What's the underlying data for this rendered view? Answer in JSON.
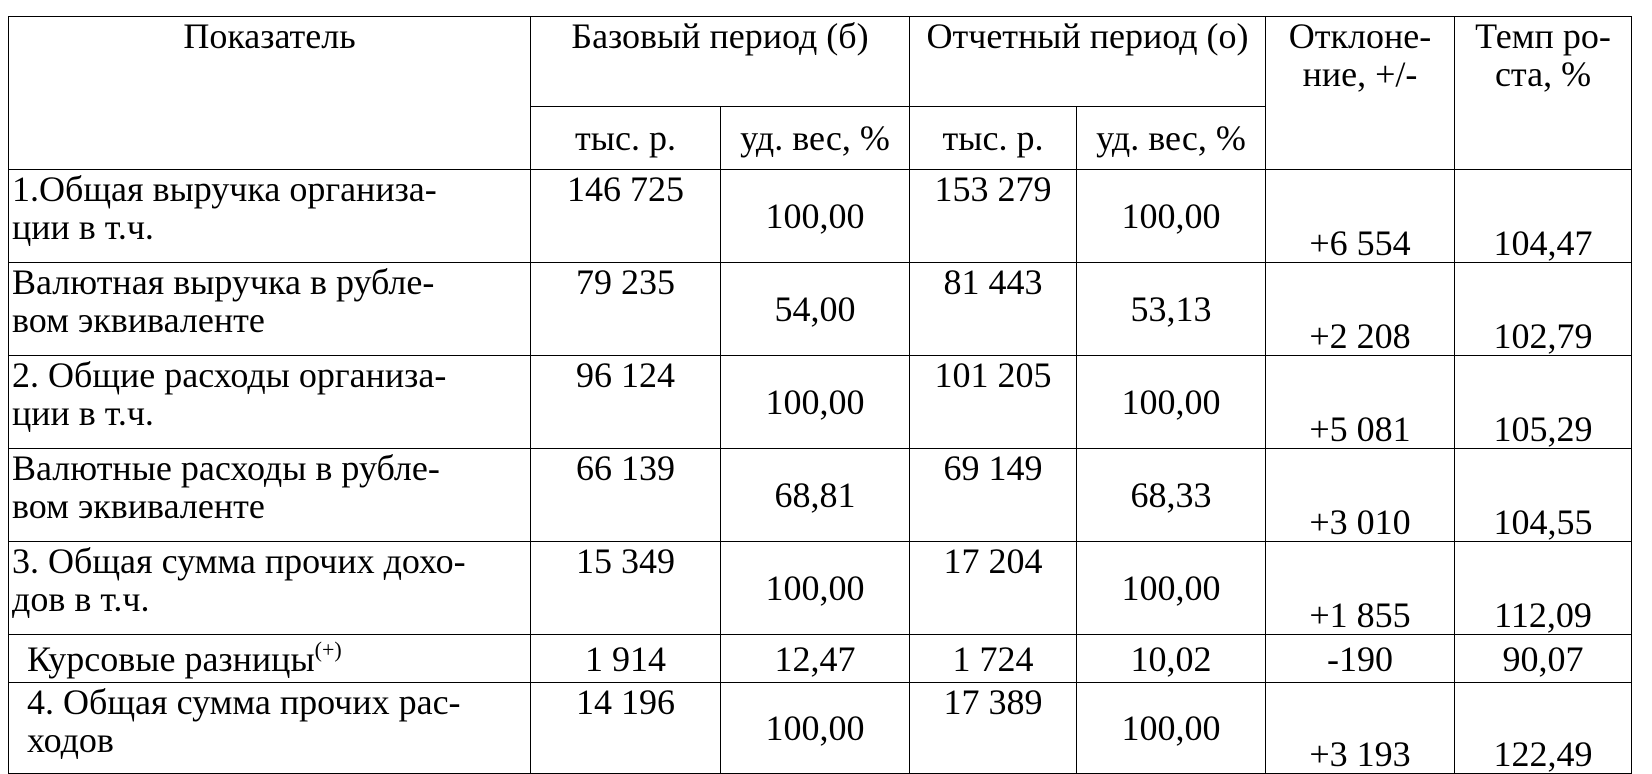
{
  "header": {
    "indicator": "Показатель",
    "base_period": "Базовый период (б)",
    "report_period": "Отчетный период (о)",
    "deviation": "Отклоне-\nние, +/-",
    "growth_rate": "Темп ро-\nста, %",
    "sub": [
      "тыс. р.",
      "уд. вес, %",
      "тыс. р.",
      "уд. вес, %"
    ]
  },
  "rows": [
    {
      "label": "1.Общая выручка организа-\nции в т.ч.",
      "cells": [
        "146 725",
        "100,00",
        "153 279",
        "100,00",
        "+6 554",
        "104,47"
      ]
    },
    {
      "label": "Валютная выручка в рубле-\nвом эквиваленте",
      "cells": [
        "79 235",
        "54,00",
        "81 443",
        "53,13",
        "+2 208",
        "102,79"
      ]
    },
    {
      "label": "2. Общие расходы организа-\nции в т.ч.",
      "cells": [
        "96 124",
        "100,00",
        "101 205",
        "100,00",
        "+5 081",
        "105,29"
      ]
    },
    {
      "label": "Валютные расходы в рубле-\nвом эквиваленте",
      "cells": [
        "66 139",
        "68,81",
        "69 149",
        "68,33",
        "+3 010",
        "104,55"
      ]
    },
    {
      "label": "3. Общая сумма прочих дохо-\nдов в т.ч.",
      "cells": [
        "15 349",
        "100,00",
        "17 204",
        "100,00",
        "+1 855",
        "112,09"
      ]
    },
    {
      "label": "Курсовые разницы",
      "sup": "(+)",
      "cells": [
        "1 914",
        "12,47",
        "1 724",
        "10,02",
        "-190",
        "90,07"
      ]
    },
    {
      "label": "4. Общая сумма прочих рас-\nходов",
      "cells": [
        "14 196",
        "100,00",
        "17 389",
        "100,00",
        "+3 193",
        "122,49"
      ]
    }
  ]
}
